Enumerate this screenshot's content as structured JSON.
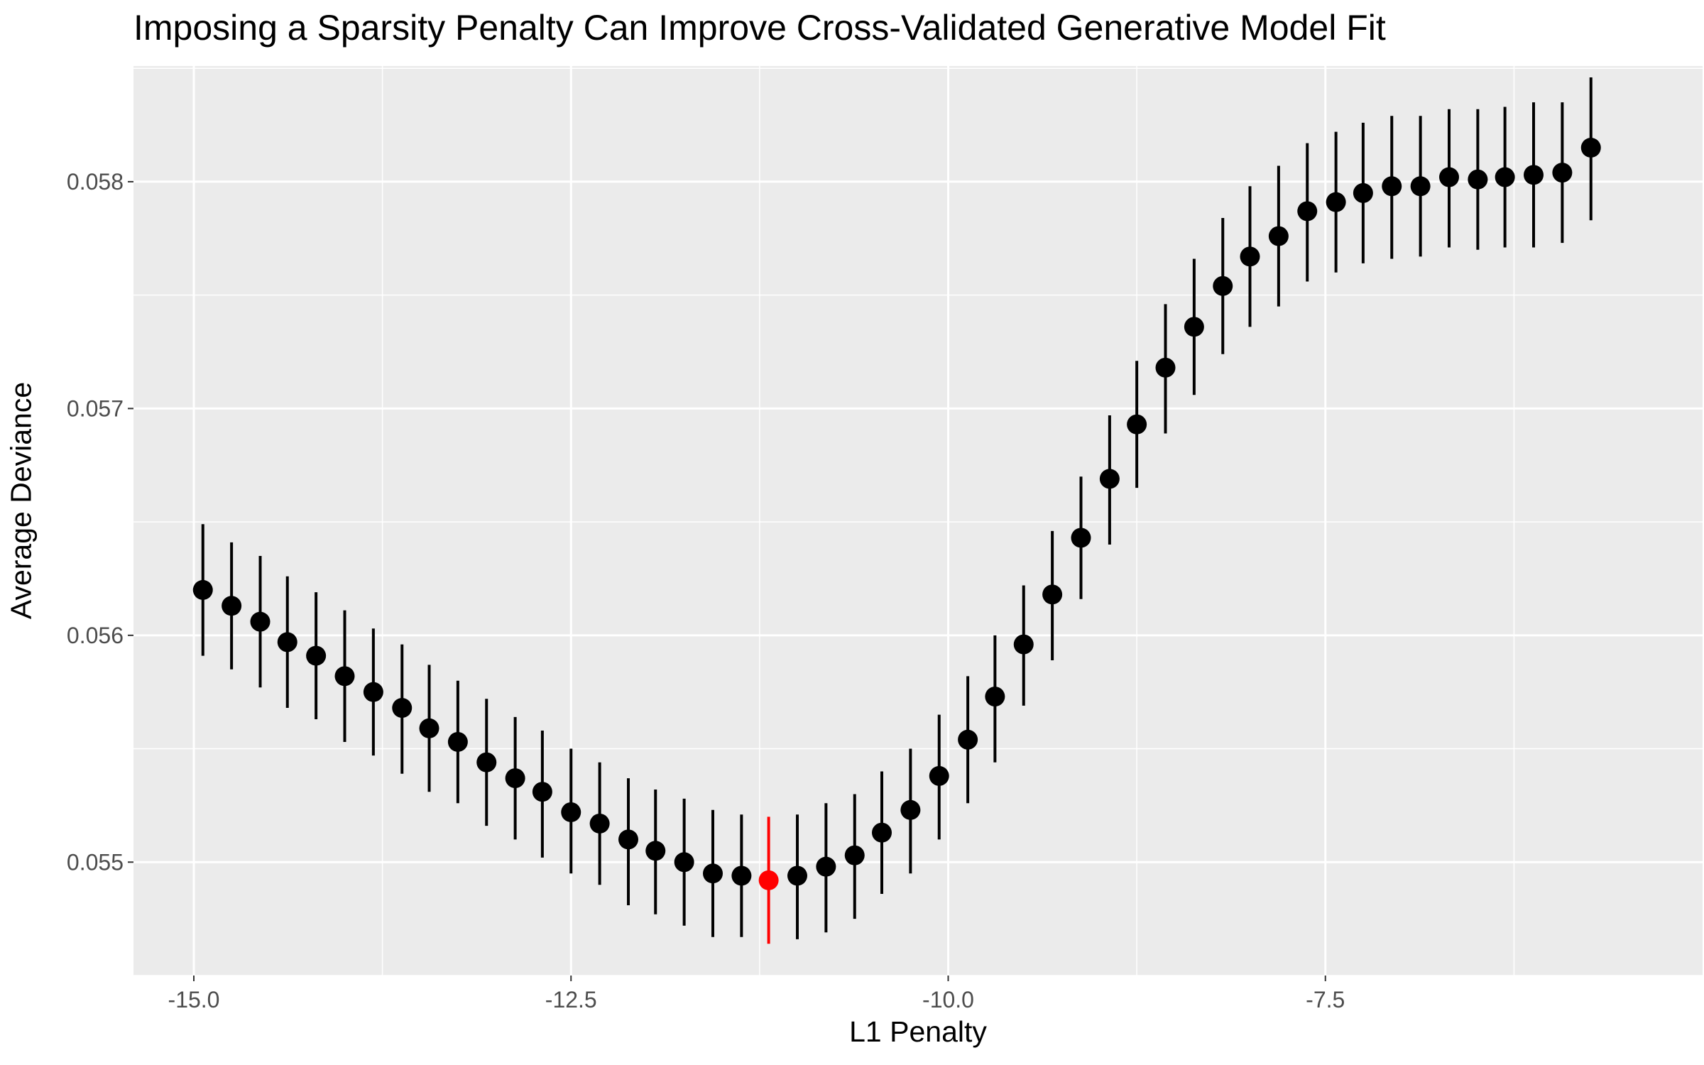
{
  "chart_data": {
    "type": "scatter",
    "title": "Imposing a Sparsity Penalty Can Improve Cross-Validated Generative Model Fit",
    "xlabel": "L1 Penalty",
    "ylabel": "Average Deviance",
    "x_ticks": [
      -15.0,
      -12.5,
      -10.0,
      -7.5
    ],
    "x_tick_labels": [
      "-15.0",
      "-12.5",
      "-10.0",
      "-7.5"
    ],
    "y_ticks": [
      0.055,
      0.056,
      0.057,
      0.058
    ],
    "y_tick_labels": [
      "0.055",
      "0.056",
      "0.057",
      "0.058"
    ],
    "xlim": [
      -15.4,
      -5.0
    ],
    "ylim": [
      0.0545,
      0.05851
    ],
    "grid": true,
    "background": "#ebebeb",
    "point_color": "#000000",
    "highlight_color": "#ff0000",
    "highlight_index": 20,
    "series": [
      {
        "x": [
          -14.94,
          -14.75,
          -14.56,
          -14.38,
          -14.19,
          -14.0,
          -13.81,
          -13.62,
          -13.44,
          -13.25,
          -13.06,
          -12.87,
          -12.69,
          -12.5,
          -12.31,
          -12.12,
          -11.94,
          -11.75,
          -11.56,
          -11.37,
          -11.19,
          -11.0,
          -10.81,
          -10.62,
          -10.44,
          -10.25,
          -10.06,
          -9.87,
          -9.69,
          -9.5,
          -9.31,
          -9.12,
          -8.93,
          -8.75,
          -8.56,
          -8.37,
          -8.18,
          -8.0,
          -7.81,
          -7.62,
          -7.43,
          -7.25,
          -7.06,
          -6.87,
          -6.68,
          -6.49,
          -6.31,
          -6.12,
          -5.93,
          -5.74
        ],
        "y": [
          0.0562,
          0.05613,
          0.05606,
          0.05597,
          0.05591,
          0.05582,
          0.05575,
          0.05568,
          0.05559,
          0.05553,
          0.05544,
          0.05537,
          0.05531,
          0.05522,
          0.05517,
          0.0551,
          0.05505,
          0.055,
          0.05495,
          0.05494,
          0.05492,
          0.05494,
          0.05498,
          0.05503,
          0.05513,
          0.05523,
          0.05538,
          0.05554,
          0.05573,
          0.05596,
          0.05618,
          0.05643,
          0.05669,
          0.05693,
          0.05718,
          0.05736,
          0.05754,
          0.05767,
          0.05776,
          0.05787,
          0.05791,
          0.05795,
          0.05798,
          0.05798,
          0.05802,
          0.05801,
          0.05802,
          0.05803,
          0.05804,
          0.05815
        ],
        "ymin": [
          0.05591,
          0.05585,
          0.05577,
          0.05568,
          0.05563,
          0.05553,
          0.05547,
          0.05539,
          0.05531,
          0.05526,
          0.05516,
          0.0551,
          0.05502,
          0.05495,
          0.0549,
          0.05481,
          0.05477,
          0.05472,
          0.05467,
          0.05467,
          0.05464,
          0.05466,
          0.05469,
          0.05475,
          0.05486,
          0.05495,
          0.0551,
          0.05526,
          0.05544,
          0.05569,
          0.05589,
          0.05616,
          0.0564,
          0.05665,
          0.05689,
          0.05706,
          0.05724,
          0.05736,
          0.05745,
          0.05756,
          0.0576,
          0.05764,
          0.05766,
          0.05767,
          0.05771,
          0.0577,
          0.05771,
          0.05771,
          0.05773,
          0.05783
        ],
        "ymax": [
          0.05649,
          0.05641,
          0.05635,
          0.05626,
          0.05619,
          0.05611,
          0.05603,
          0.05596,
          0.05587,
          0.0558,
          0.05572,
          0.05564,
          0.05558,
          0.0555,
          0.05544,
          0.05537,
          0.05532,
          0.05528,
          0.05523,
          0.05521,
          0.0552,
          0.05521,
          0.05526,
          0.0553,
          0.0554,
          0.0555,
          0.05565,
          0.05582,
          0.056,
          0.05622,
          0.05646,
          0.0567,
          0.05697,
          0.05721,
          0.05746,
          0.05766,
          0.05784,
          0.05798,
          0.05807,
          0.05817,
          0.05822,
          0.05826,
          0.05829,
          0.05829,
          0.05832,
          0.05832,
          0.05833,
          0.05835,
          0.05835,
          0.05846
        ]
      }
    ]
  }
}
